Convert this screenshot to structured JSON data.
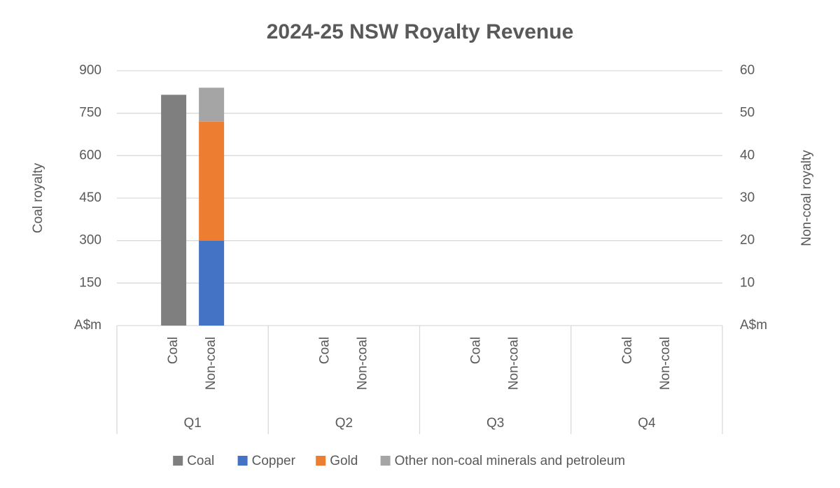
{
  "chart_data": {
    "type": "bar",
    "title": "2024-25 NSW Royalty Revenue",
    "y_label": "Coal royalty",
    "y2_label": "Non-coal royalty",
    "categories": [
      "Q1",
      "Q2",
      "Q3",
      "Q4"
    ],
    "subcategories": [
      [
        "Coal",
        "Non-coal"
      ],
      [
        "Coal",
        "Non-coal"
      ],
      [
        "Coal",
        "Non-coal"
      ],
      [
        "Coal",
        "Non-coal"
      ]
    ],
    "series": [
      {
        "name": "Coal",
        "color": "#7f7f7f",
        "axis": "y",
        "values": [
          815,
          null,
          null,
          null
        ]
      },
      {
        "name": "Copper",
        "color": "#4472c4",
        "axis": "y2",
        "values": [
          20,
          null,
          null,
          null
        ]
      },
      {
        "name": "Gold",
        "color": "#ed7d31",
        "axis": "y2",
        "values": [
          28,
          null,
          null,
          null
        ]
      },
      {
        "name": "Other non-coal minerals and petroleum",
        "color": "#a5a5a5",
        "axis": "y2",
        "values": [
          8,
          null,
          null,
          null
        ]
      }
    ],
    "ylim": [
      0,
      900
    ],
    "yticks": [
      {
        "value": 0,
        "label": "A$m"
      },
      150,
      300,
      450,
      600,
      750,
      900
    ],
    "y2lim": [
      0,
      60
    ],
    "y2ticks": [
      {
        "value": 0,
        "label": "A$m"
      },
      10,
      20,
      30,
      40,
      50,
      60
    ],
    "grid": true,
    "legend": "bottom"
  }
}
